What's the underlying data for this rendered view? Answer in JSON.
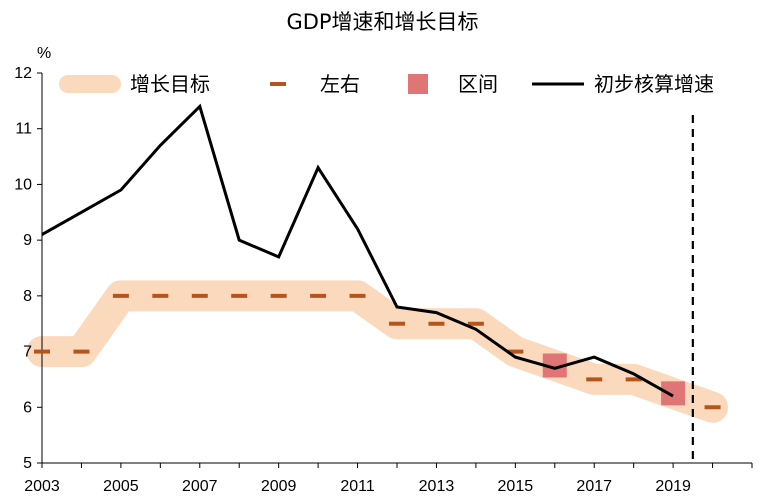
{
  "chart_data": {
    "type": "line",
    "title": "GDP增速和增长目标",
    "unit": "%",
    "xlabel": "",
    "ylabel": "",
    "ylim": [
      5,
      12
    ],
    "xlim": [
      2003,
      2021
    ],
    "x_tick_labels": [
      "2003",
      "2005",
      "2007",
      "2009",
      "2011",
      "2013",
      "2015",
      "2017",
      "2019"
    ],
    "y_tick_labels": [
      "5",
      "6",
      "7",
      "8",
      "9",
      "10",
      "11",
      "12"
    ],
    "legend_position": "top",
    "grid": false,
    "series": [
      {
        "name": "增长目标",
        "style": "band",
        "color": "#fbd9bd",
        "x": [
          2003,
          2004,
          2005,
          2006,
          2007,
          2008,
          2009,
          2010,
          2011,
          2012,
          2013,
          2014,
          2015,
          2016,
          2017,
          2018,
          2019,
          2020
        ],
        "values": [
          7,
          7,
          8,
          8,
          8,
          8,
          8,
          8,
          8,
          7.5,
          7.5,
          7.5,
          7,
          6.75,
          6.5,
          6.5,
          6.25,
          6
        ]
      },
      {
        "name": "左右",
        "style": "dash-marker",
        "color": "#b5541c",
        "x": [
          2003,
          2004,
          2005,
          2006,
          2007,
          2008,
          2009,
          2010,
          2011,
          2012,
          2013,
          2014,
          2015,
          2017,
          2018,
          2020
        ],
        "values": [
          7,
          7,
          8,
          8,
          8,
          8,
          8,
          8,
          8,
          7.5,
          7.5,
          7.5,
          7,
          6.5,
          6.5,
          6
        ]
      },
      {
        "name": "区间",
        "style": "square-marker",
        "color": "#e07575",
        "x": [
          2016,
          2019
        ],
        "values": [
          6.75,
          6.25
        ]
      },
      {
        "name": "初步核算增速",
        "style": "line",
        "color": "#000000",
        "x": [
          2003,
          2004,
          2005,
          2006,
          2007,
          2008,
          2009,
          2010,
          2011,
          2012,
          2013,
          2014,
          2015,
          2016,
          2017,
          2018,
          2019
        ],
        "values": [
          9.1,
          9.5,
          9.9,
          10.7,
          11.4,
          9.0,
          8.7,
          10.3,
          9.2,
          7.8,
          7.7,
          7.4,
          6.9,
          6.7,
          6.9,
          6.6,
          6.2
        ]
      }
    ],
    "reference_lines": [
      {
        "type": "vertical",
        "x": 2019.5,
        "style": "dashed",
        "color": "#000000"
      }
    ]
  }
}
